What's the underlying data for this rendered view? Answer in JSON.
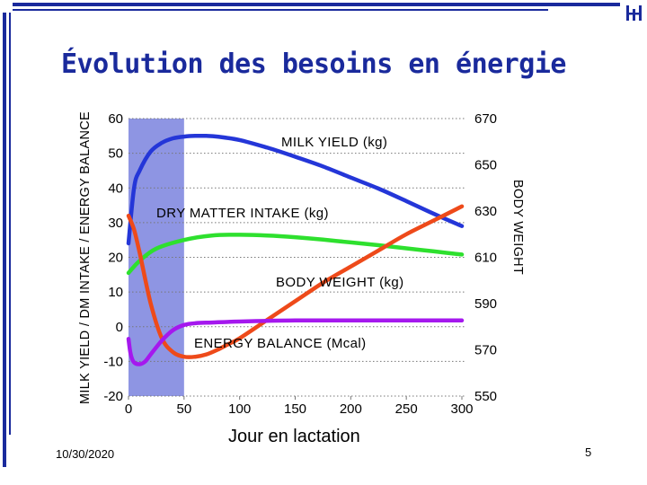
{
  "slide": {
    "title": "Évolution des besoins en énergie",
    "date": "10/30/2020",
    "page": "5",
    "x_caption": "Jour en lactation",
    "logo_icon": "university-logo-icon",
    "accent_color": "#1a2a9c"
  },
  "chart_data": {
    "type": "line",
    "grid": "horizontal dotted",
    "highlight": {
      "x_range": [
        0,
        50
      ],
      "color": "#8e95e3"
    },
    "x_ticks": [
      "0",
      "50",
      "100",
      "150",
      "200",
      "250",
      "300"
    ],
    "y_left_ticks": [
      "60",
      "50",
      "40",
      "30",
      "20",
      "10",
      "0",
      "-10",
      "-20"
    ],
    "y_right_ticks": [
      "670",
      "650",
      "630",
      "610",
      "590",
      "570",
      "550"
    ],
    "xlim": [
      0,
      300
    ],
    "ylim_left": [
      -20,
      60
    ],
    "ylim_right": [
      550,
      670
    ],
    "ylabel_left": "MILK YIELD / DM INTAKE / ENERGY BALANCE",
    "ylabel_right": "BODY  WEIGHT",
    "series": [
      {
        "name": "MILK  YIELD  (kg)",
        "axis": "left",
        "color": "#2436d8",
        "x": [
          0,
          5,
          10,
          20,
          30,
          40,
          50,
          60,
          70,
          80,
          100,
          125,
          150,
          175,
          200,
          225,
          250,
          275,
          300
        ],
        "values": [
          24,
          40,
          45,
          50.5,
          53,
          54.3,
          54.8,
          55,
          55,
          54.8,
          53.8,
          51.6,
          49,
          46.2,
          43,
          39.8,
          36.2,
          32.5,
          29
        ]
      },
      {
        "name": "DRY  MATTER  INTAKE  (kg)",
        "axis": "left",
        "color": "#2ee02e",
        "x": [
          0,
          10,
          25,
          50,
          75,
          100,
          125,
          150,
          175,
          200,
          225,
          250,
          275,
          300
        ],
        "values": [
          15.5,
          19,
          22.5,
          25,
          26.3,
          26.5,
          26.3,
          25.8,
          25.1,
          24.3,
          23.5,
          22.6,
          21.7,
          20.8
        ]
      },
      {
        "name": "BODY  WEIGHT  (kg)",
        "axis": "right",
        "color": "#ee4a1a",
        "x": [
          0,
          5,
          10,
          20,
          30,
          40,
          50,
          60,
          70,
          80,
          90,
          100,
          125,
          150,
          175,
          200,
          225,
          250,
          275,
          300
        ],
        "values": [
          628,
          622,
          612,
          590,
          575,
          569,
          567,
          567,
          568,
          570,
          572.5,
          575,
          583,
          591,
          599,
          606,
          613,
          620,
          626,
          632
        ]
      },
      {
        "name": "ENERGY  BALANCE  (Mcal)",
        "axis": "left",
        "color": "#a518ee",
        "x": [
          0,
          2,
          5,
          10,
          15,
          20,
          30,
          40,
          50,
          60,
          75,
          100,
          150,
          200,
          250,
          300
        ],
        "values": [
          -3.5,
          -8,
          -10.3,
          -10.8,
          -10,
          -8,
          -4,
          -1,
          0.5,
          1,
          1.2,
          1.5,
          1.8,
          1.8,
          1.8,
          1.8
        ]
      }
    ]
  }
}
